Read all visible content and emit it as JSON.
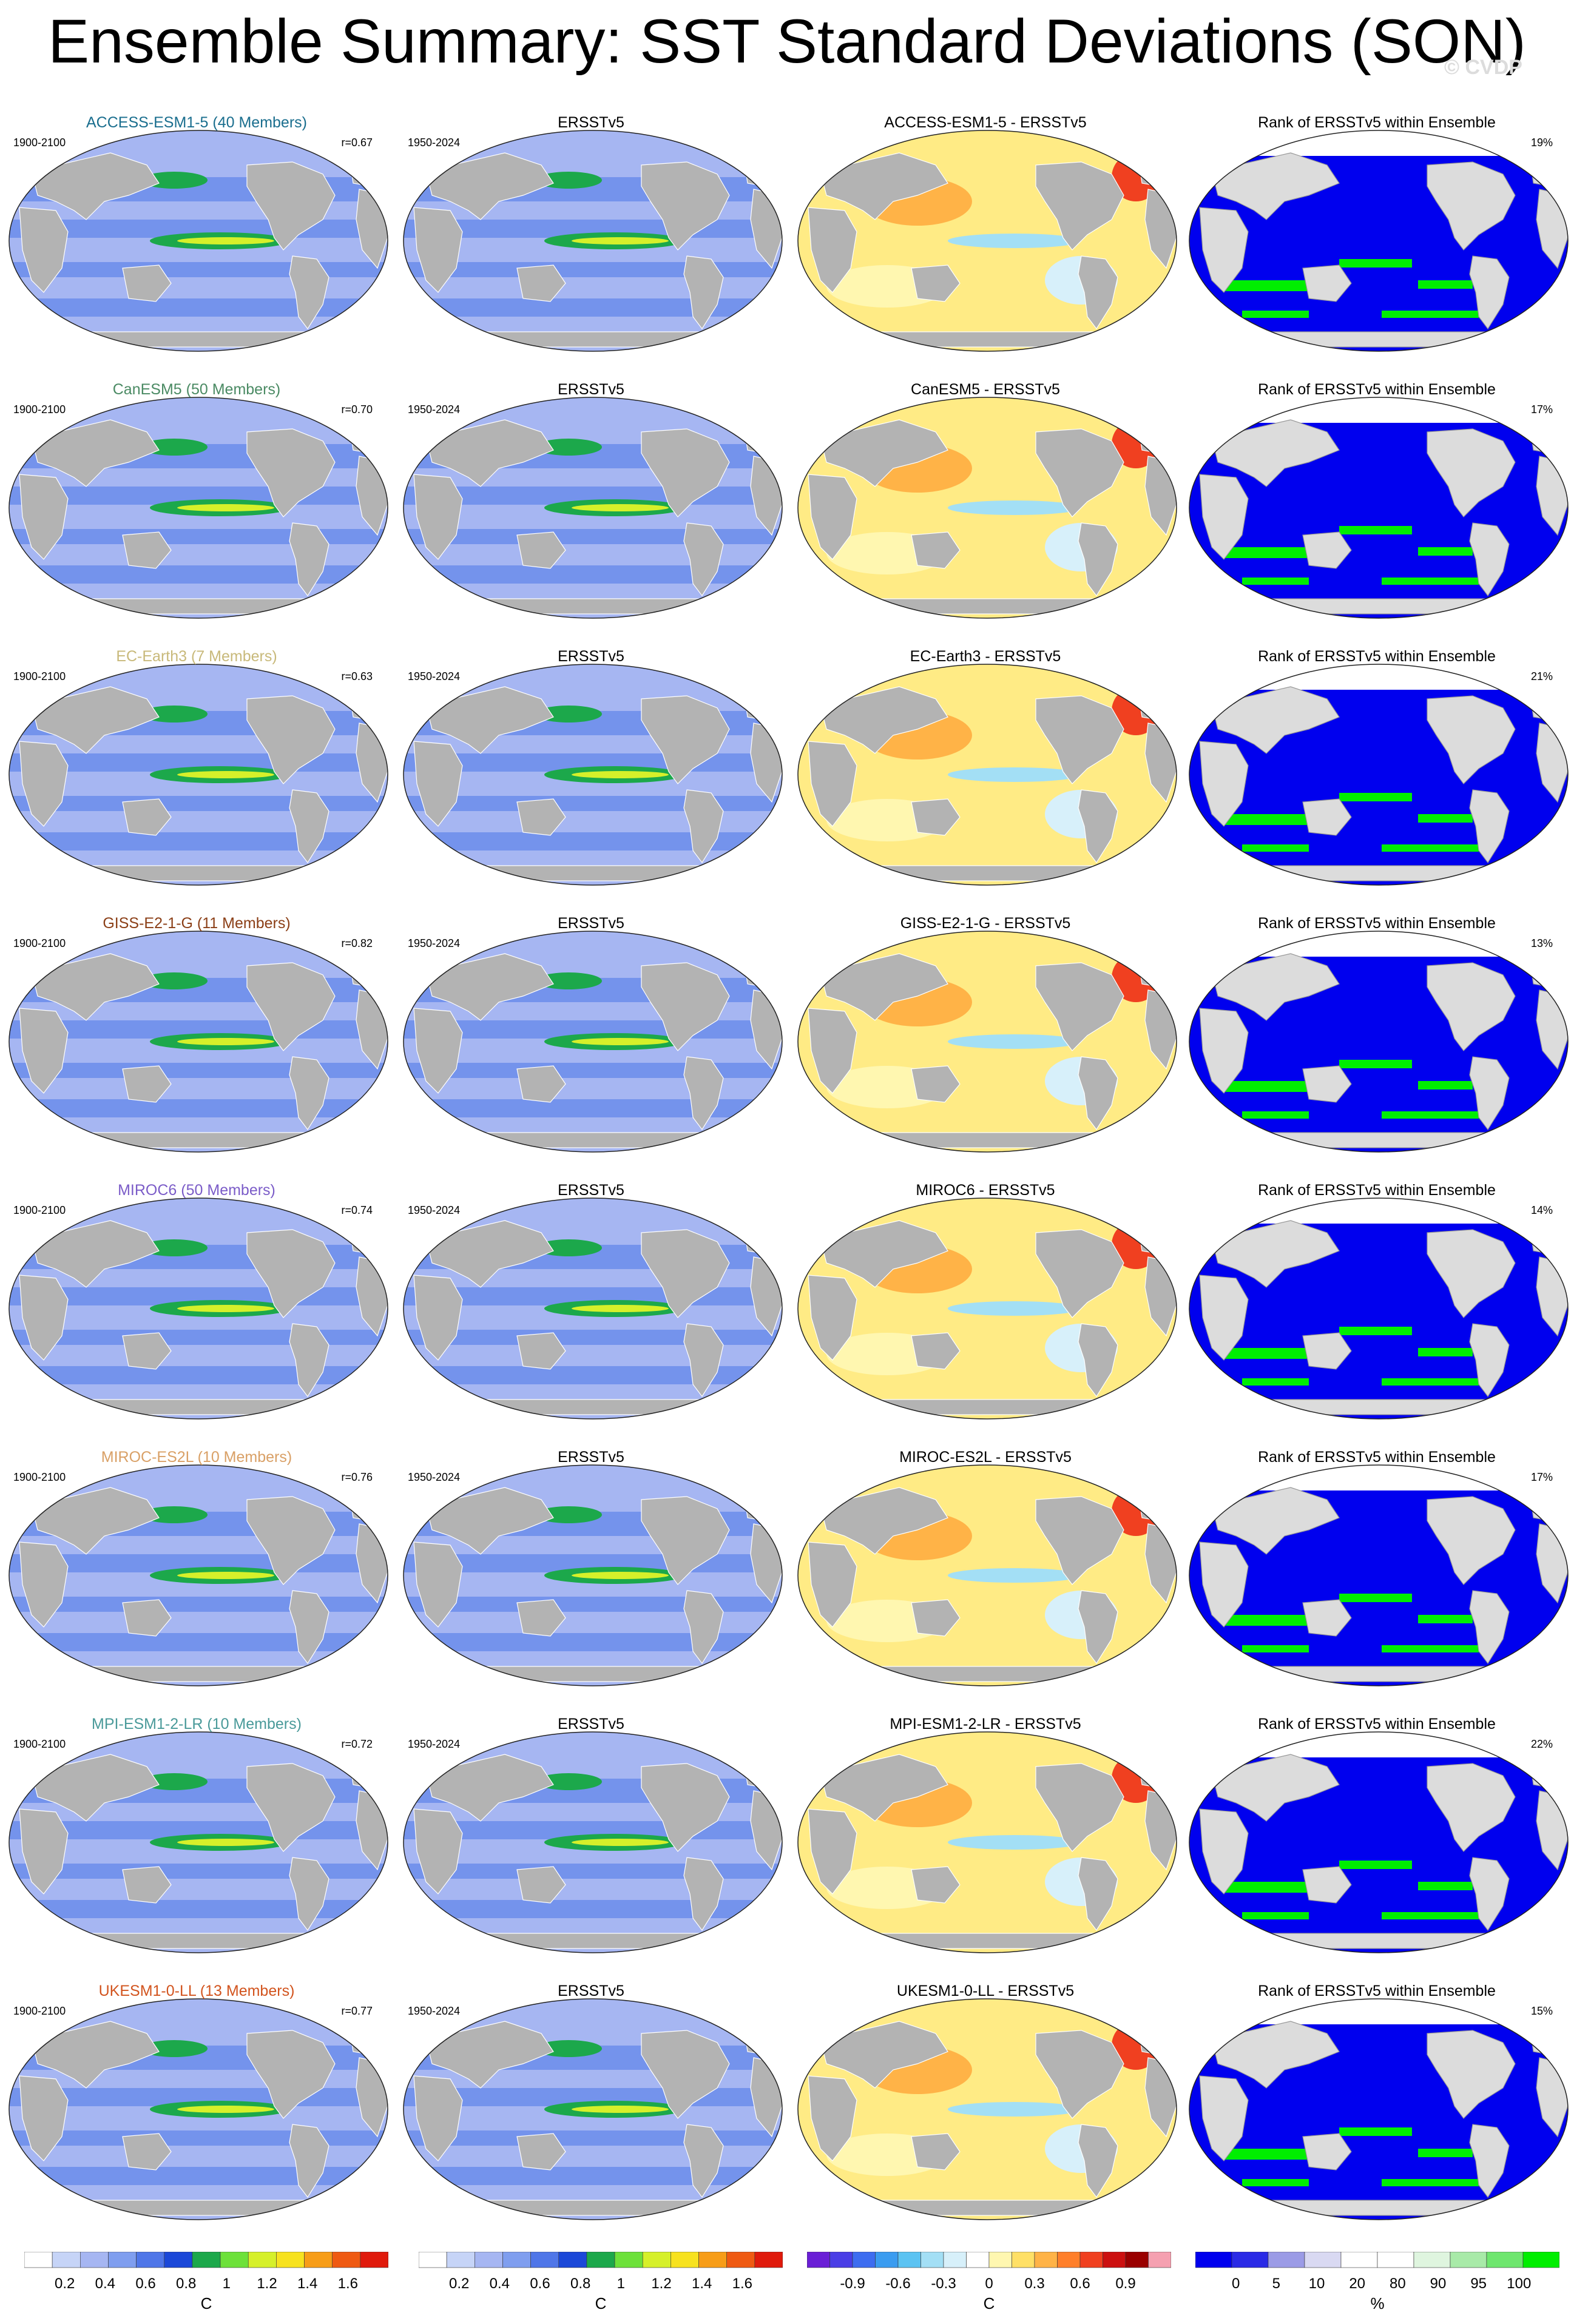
{
  "title": "Ensemble Summary: SST Standard Deviations (SON)",
  "watermark": "© CVDP",
  "column_titles": {
    "obs": "ERSSTv5",
    "rank": "Rank of ERSSTv5 within Ensemble"
  },
  "obs_period": "1950-2024",
  "model_period": "1900-2100",
  "colors": {
    "ocean_low": "#a6b6f2",
    "ocean_mid": "#5f85ea",
    "land": "#b3b3b3",
    "rank_land": "#dcdcdc",
    "rank_blue": "#0000ee",
    "rank_green": "#00ee00"
  },
  "rows": [
    {
      "model": "ACCESS-ESM1-5 (40 Members)",
      "model_color": "#1a6e8e",
      "r": "r=0.67",
      "diff": "ACCESS-ESM1-5 - ERSSTv5",
      "rank_pct": "19%"
    },
    {
      "model": "CanESM5 (50 Members)",
      "model_color": "#4a8a63",
      "r": "r=0.70",
      "diff": "CanESM5 - ERSSTv5",
      "rank_pct": "17%"
    },
    {
      "model": "EC-Earth3 (7 Members)",
      "model_color": "#c8b97a",
      "r": "r=0.63",
      "diff": "EC-Earth3 - ERSSTv5",
      "rank_pct": "21%"
    },
    {
      "model": "GISS-E2-1-G (11 Members)",
      "model_color": "#8b3f17",
      "r": "r=0.82",
      "diff": "GISS-E2-1-G - ERSSTv5",
      "rank_pct": "13%"
    },
    {
      "model": "MIROC6 (50 Members)",
      "model_color": "#7b5cc8",
      "r": "r=0.74",
      "diff": "MIROC6 - ERSSTv5",
      "rank_pct": "14%"
    },
    {
      "model": "MIROC-ES2L (10 Members)",
      "model_color": "#d9a066",
      "r": "r=0.76",
      "diff": "MIROC-ES2L - ERSSTv5",
      "rank_pct": "17%"
    },
    {
      "model": "MPI-ESM1-2-LR (10 Members)",
      "model_color": "#4a9a9a",
      "r": "r=0.72",
      "diff": "MPI-ESM1-2-LR - ERSSTv5",
      "rank_pct": "22%"
    },
    {
      "model": "UKESM1-0-LL (13 Members)",
      "model_color": "#d2541e",
      "r": "r=0.77",
      "diff": "UKESM1-0-LL - ERSSTv5",
      "rank_pct": "15%"
    }
  ],
  "colorbars": {
    "std": {
      "ticks": [
        "0.2",
        "0.4",
        "0.6",
        "0.8",
        "1",
        "1.2",
        "1.4",
        "1.6"
      ],
      "unit": "C",
      "colors": [
        "#ffffff",
        "#c6d4f7",
        "#a6b6f2",
        "#7f9eef",
        "#4f76e8",
        "#1b48d8",
        "#1ca84b",
        "#6de13a",
        "#d6f02a",
        "#f7e21f",
        "#f79d18",
        "#ef5a12",
        "#e01a0c"
      ]
    },
    "diff": {
      "ticks": [
        "-0.9",
        "-0.6",
        "-0.3",
        "0",
        "0.3",
        "0.6",
        "0.9"
      ],
      "unit": "C",
      "colors": [
        "#6a1fd6",
        "#4a3ee6",
        "#3d6df0",
        "#3a9cf0",
        "#5bc3f2",
        "#a3dff5",
        "#d7f0fa",
        "#ffffff",
        "#fff7b0",
        "#ffe066",
        "#ffb347",
        "#ff7f2a",
        "#f04020",
        "#cc1010",
        "#9a0000",
        "#f5a0b0"
      ]
    },
    "rank": {
      "ticks": [
        "0",
        "5",
        "10",
        "20",
        "80",
        "90",
        "95",
        "100"
      ],
      "unit": "%",
      "colors": [
        "#0000ee",
        "#2a2ae6",
        "#9b9be6",
        "#d9d9f2",
        "#ffffff",
        "#ffffff",
        "#dff5df",
        "#a8eaa8",
        "#6ee66e",
        "#00ee00"
      ]
    }
  }
}
